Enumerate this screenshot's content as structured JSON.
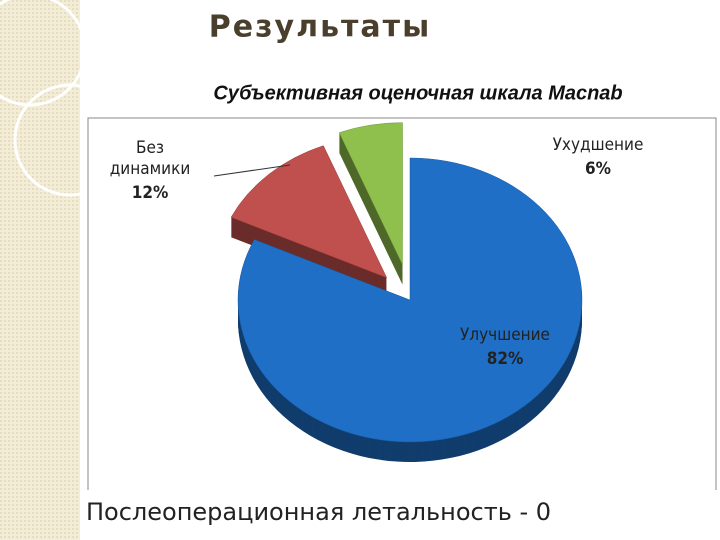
{
  "title": "Результаты",
  "note": "Послеоперационная летальность - 0",
  "chart_data": {
    "type": "pie",
    "title": "Субъективная оценочная шкала Macnab",
    "categories": [
      "Улучшение",
      "Без динамики",
      "Ухудшение"
    ],
    "values": [
      82,
      12,
      6
    ],
    "value_labels": [
      "82%",
      "12%",
      "6%"
    ],
    "colors": [
      "#1f6fc6",
      "#c0504d",
      "#8fbf4d"
    ]
  }
}
